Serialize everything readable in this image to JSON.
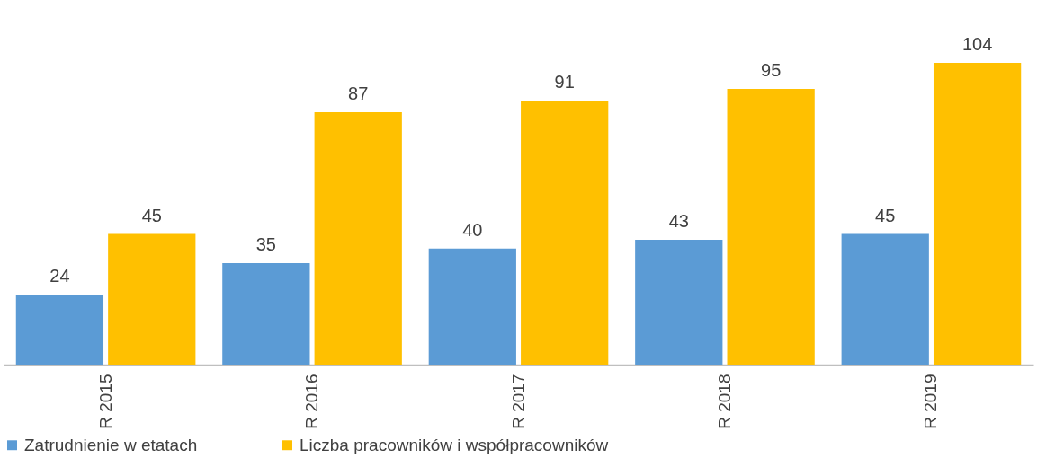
{
  "chart_data": {
    "type": "bar",
    "categories": [
      "R 2015",
      "R 2016",
      "R 2017",
      "R 2018",
      "R 2019"
    ],
    "series": [
      {
        "name": "Zatrudnienie w etatach",
        "color": "#5b9bd5",
        "values": [
          24,
          35,
          40,
          43,
          45
        ]
      },
      {
        "name": "Liczba pracowników i współpracowników",
        "color": "#ffc000",
        "values": [
          45,
          87,
          91,
          95,
          104
        ]
      }
    ],
    "data_labels": true,
    "legend": "bottom",
    "grid": false
  }
}
